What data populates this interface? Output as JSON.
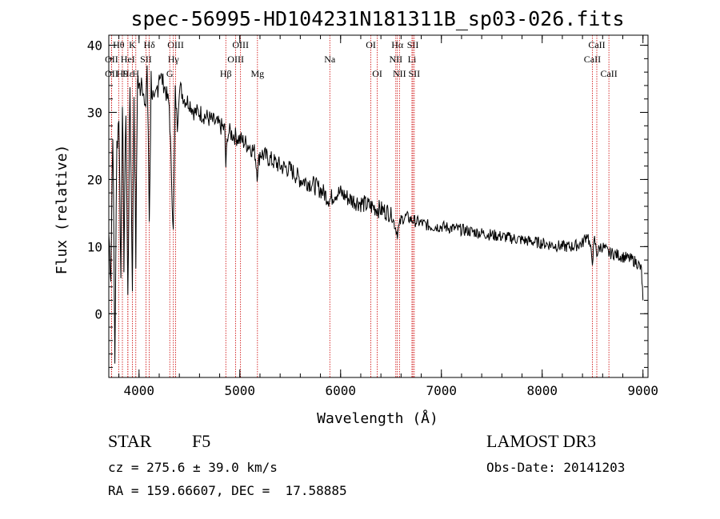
{
  "chart_data": {
    "type": "line",
    "title": "spec-56995-HD104231N181311B_sp03-026.fits",
    "xlabel": "Wavelength (Å)",
    "ylabel": "Flux (relative)",
    "xlim": [
      3700,
      9050
    ],
    "ylim": [
      -9.5,
      41.5
    ],
    "xticks": [
      4000,
      5000,
      6000,
      7000,
      8000,
      9000
    ],
    "yticks": [
      0,
      10,
      20,
      30,
      40
    ],
    "xtick_labels": [
      "4000",
      "5000",
      "6000",
      "7000",
      "8000",
      "9000"
    ],
    "ytick_labels": [
      "0",
      "10",
      "20",
      "30",
      "40"
    ],
    "series": [
      {
        "name": "spectrum",
        "x": [
          3700,
          3720,
          3740,
          3760,
          3780,
          3800,
          3820,
          3835,
          3850,
          3870,
          3889,
          3910,
          3934,
          3950,
          3968,
          3985,
          4000,
          4030,
          4060,
          4080,
          4102,
          4120,
          4150,
          4200,
          4250,
          4300,
          4340,
          4360,
          4380,
          4400,
          4450,
          4500,
          4550,
          4600,
          4650,
          4700,
          4750,
          4800,
          4850,
          4861,
          4880,
          4900,
          4950,
          5000,
          5050,
          5100,
          5150,
          5172,
          5200,
          5300,
          5400,
          5500,
          5600,
          5700,
          5800,
          5893,
          5950,
          6000,
          6100,
          6200,
          6300,
          6400,
          6500,
          6563,
          6600,
          6650,
          6700,
          6800,
          6900,
          7000,
          7200,
          7400,
          7600,
          7800,
          8000,
          8200,
          8300,
          8400,
          8450,
          8498,
          8520,
          8542,
          8580,
          8600,
          8662,
          8700,
          8800,
          8900,
          8950,
          8985,
          9000
        ],
        "y": [
          12,
          6,
          28,
          -7,
          25,
          30,
          5,
          33,
          8,
          31,
          2,
          34,
          5,
          33,
          8,
          36,
          33,
          36,
          29,
          37,
          14,
          35,
          30,
          36,
          34,
          31,
          12,
          33,
          28,
          34,
          32,
          31.5,
          30,
          30,
          29.5,
          29,
          28.5,
          28,
          27.5,
          22,
          27,
          27,
          26.5,
          26,
          25.5,
          25,
          24,
          21,
          24,
          23,
          22,
          21.5,
          20,
          19.5,
          18.5,
          17,
          18,
          18,
          17,
          16.5,
          16,
          15.5,
          15,
          12,
          14,
          14.5,
          14,
          13.5,
          13,
          13,
          12.5,
          12,
          11.5,
          11,
          10.5,
          10,
          10,
          10.5,
          12,
          8,
          11,
          9,
          10,
          10,
          9,
          9,
          8.5,
          8,
          7.5,
          6.5,
          2
        ]
      }
    ],
    "lines": [
      {
        "name": "OII",
        "x": 3727,
        "row": 1
      },
      {
        "name": "OII",
        "x": 3727,
        "row": 3
      },
      {
        "name": "H9",
        "x": 3835,
        "row": 2
      },
      {
        "name": "Hε",
        "x": 3889,
        "row": 2
      },
      {
        "name": "Hθ",
        "x": 3798,
        "row": 0
      },
      {
        "name": "HeI",
        "x": 3889,
        "row": 1
      },
      {
        "name": "K",
        "x": 3934,
        "row": 0
      },
      {
        "name": "H",
        "x": 3968,
        "row": 2
      },
      {
        "name": "SII",
        "x": 4069,
        "row": 1
      },
      {
        "name": "Hδ",
        "x": 4102,
        "row": 0
      },
      {
        "name": "OIII",
        "x": 4363,
        "row": 0
      },
      {
        "name": "Hγ",
        "x": 4341,
        "row": 1
      },
      {
        "name": "G",
        "x": 4305,
        "row": 2
      },
      {
        "name": "Hβ",
        "x": 4861,
        "row": 2
      },
      {
        "name": "OIII",
        "x": 4959,
        "row": 1
      },
      {
        "name": "OIII",
        "x": 5007,
        "row": 0
      },
      {
        "name": "Mg",
        "x": 5175,
        "row": 2
      },
      {
        "name": "Na",
        "x": 5893,
        "row": 1
      },
      {
        "name": "OI",
        "x": 6300,
        "row": 0
      },
      {
        "name": "OI",
        "x": 6364,
        "row": 2
      },
      {
        "name": "Hα",
        "x": 6563,
        "row": 0
      },
      {
        "name": "NII",
        "x": 6548,
        "row": 1
      },
      {
        "name": "NII",
        "x": 6584,
        "row": 2
      },
      {
        "name": "SII",
        "x": 6717,
        "row": 0
      },
      {
        "name": "Li",
        "x": 6708,
        "row": 1
      },
      {
        "name": "SII",
        "x": 6731,
        "row": 2
      },
      {
        "name": "CaII",
        "x": 8498,
        "row": 1
      },
      {
        "name": "CaII",
        "x": 8542,
        "row": 0
      },
      {
        "name": "CaII",
        "x": 8662,
        "row": 2
      }
    ]
  },
  "info": {
    "object_class": "STAR",
    "subclass": "F5",
    "survey": "LAMOST DR3",
    "cz": "cz = 275.6 ± 39.0 km/s",
    "obs_date": "Obs-Date: 20141203",
    "coords": "RA = 159.66607, DEC =  17.58885"
  },
  "colors": {
    "spectrum": "#000000",
    "line_marker": "#cc0000",
    "axis": "#000000"
  }
}
